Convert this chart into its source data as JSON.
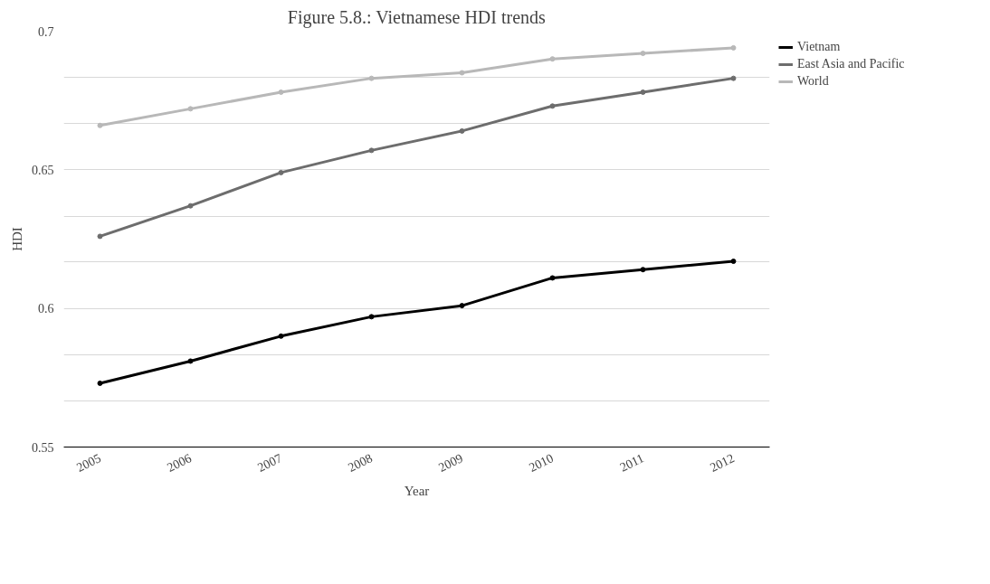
{
  "chart_data": {
    "type": "line",
    "title": "Figure 5.8.: Vietnamese HDI trends",
    "xlabel": "Year",
    "ylabel": "HDI",
    "categories": [
      "2005",
      "2006",
      "2007",
      "2008",
      "2009",
      "2010",
      "2011",
      "2012"
    ],
    "series": [
      {
        "name": "Vietnam",
        "color": "#000000",
        "values": [
          0.573,
          0.581,
          0.59,
          0.597,
          0.601,
          0.611,
          0.614,
          0.617
        ]
      },
      {
        "name": "East Asia and Pacific",
        "color": "#6d6d6d",
        "values": [
          0.626,
          0.637,
          0.649,
          0.657,
          0.664,
          0.673,
          0.678,
          0.683
        ]
      },
      {
        "name": "World",
        "color": "#b8b8b8",
        "values": [
          0.666,
          0.672,
          0.678,
          0.683,
          0.685,
          0.69,
          0.692,
          0.694
        ]
      }
    ],
    "ylim": [
      0.55,
      0.7
    ],
    "yticks": [
      0.55,
      {
        "value": 0.5667,
        "label": null
      },
      {
        "value": 0.5833,
        "label": null
      },
      0.6,
      {
        "value": 0.6167,
        "label": null
      },
      {
        "value": 0.6333,
        "label": null
      },
      0.65,
      {
        "value": 0.6667,
        "label": null
      },
      {
        "value": 0.6833,
        "label": null
      },
      0.7
    ],
    "grid": "y",
    "legend": "top right",
    "marker": "circle",
    "line_style": "solid"
  }
}
